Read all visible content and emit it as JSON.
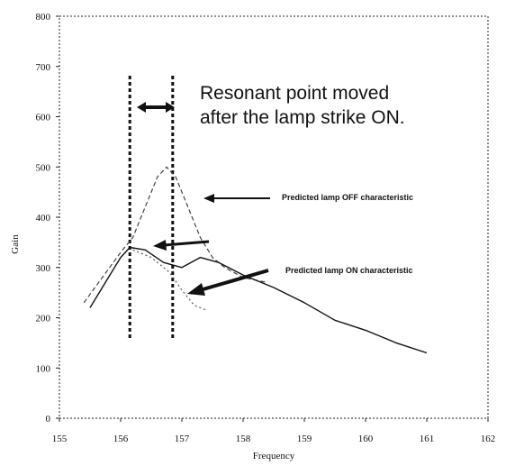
{
  "chart_data": {
    "type": "line",
    "title": "",
    "xlabel": "Frequency",
    "ylabel": "Gain",
    "xlim": [
      155,
      162
    ],
    "ylim": [
      0,
      800
    ],
    "x_ticks": [
      "155",
      "156",
      "157",
      "158",
      "159",
      "160",
      "161",
      "162"
    ],
    "y_ticks": [
      "0",
      "100",
      "200",
      "300",
      "400",
      "500",
      "600",
      "700",
      "800"
    ],
    "series": [
      {
        "name": "Predicted lamp OFF characteristic",
        "style": "dashed",
        "color": "#444444",
        "points": [
          [
            155.4,
            230
          ],
          [
            155.7,
            280
          ],
          [
            156.0,
            330
          ],
          [
            156.2,
            360
          ],
          [
            156.4,
            420
          ],
          [
            156.6,
            480
          ],
          [
            156.75,
            500
          ],
          [
            156.9,
            480
          ],
          [
            157.1,
            420
          ],
          [
            157.3,
            360
          ],
          [
            157.5,
            320
          ],
          [
            157.7,
            300
          ],
          [
            158.0,
            280
          ],
          [
            158.4,
            270
          ]
        ]
      },
      {
        "name": "Predicted lamp ON characteristic",
        "style": "solid",
        "color": "#111111",
        "points": [
          [
            155.5,
            220
          ],
          [
            155.8,
            280
          ],
          [
            156.0,
            320
          ],
          [
            156.15,
            340
          ],
          [
            156.4,
            335
          ],
          [
            156.7,
            310
          ],
          [
            157.0,
            300
          ],
          [
            157.3,
            320
          ],
          [
            157.6,
            310
          ],
          [
            158.0,
            285
          ],
          [
            158.5,
            260
          ],
          [
            159.0,
            230
          ],
          [
            159.5,
            195
          ],
          [
            160.0,
            175
          ],
          [
            160.5,
            150
          ],
          [
            161.0,
            130
          ]
        ]
      },
      {
        "name": "",
        "style": "dotted",
        "color": "#555555",
        "points": [
          [
            156.2,
            335
          ],
          [
            156.5,
            320
          ],
          [
            156.8,
            290
          ],
          [
            157.0,
            255
          ],
          [
            157.2,
            225
          ],
          [
            157.4,
            215
          ]
        ]
      }
    ],
    "vlines": [
      156.15,
      156.85
    ],
    "annotations": {
      "resonant_line1": "Resonant point moved",
      "resonant_line2": "after the lamp strike ON.",
      "off_label": "Predicted lamp OFF characteristic",
      "on_label": "Predicted lamp ON characteristic"
    }
  }
}
